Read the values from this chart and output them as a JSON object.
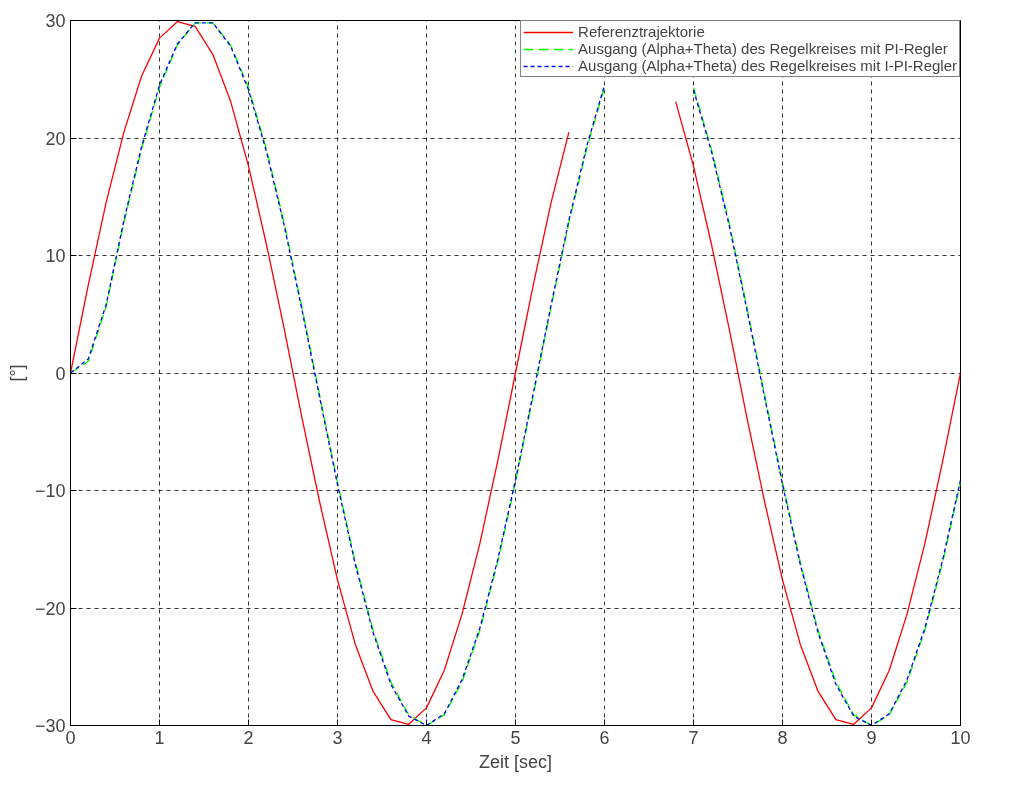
{
  "chart_data": {
    "type": "line",
    "xlabel": "Zeit [sec]",
    "ylabel": "[°]",
    "x": [
      0,
      0.2,
      0.4,
      0.6,
      0.8,
      1,
      1.2,
      1.4,
      1.6,
      1.8,
      2,
      2.2,
      2.4,
      2.6,
      2.8,
      3,
      3.2,
      3.4,
      3.6,
      3.8,
      4,
      4.2,
      4.4,
      4.6,
      4.8,
      5,
      5.2,
      5.4,
      5.6,
      5.8,
      6,
      6.2,
      6.4,
      6.6,
      6.8,
      7,
      7.2,
      7.4,
      7.6,
      7.8,
      8,
      8.2,
      8.4,
      8.6,
      8.8,
      9,
      9.2,
      9.4,
      9.6,
      9.8,
      10
    ],
    "series": [
      {
        "name": "Referenztrajektorie",
        "color": "#ff0000",
        "line_style": "solid",
        "values": [
          0,
          7.5,
          14.5,
          20.5,
          25.3,
          28.5,
          29.9,
          29.5,
          27.1,
          23.1,
          17.6,
          11.0,
          3.8,
          -3.8,
          -11.0,
          -17.6,
          -23.1,
          -27.1,
          -29.5,
          -29.9,
          -28.5,
          -25.3,
          -20.5,
          -14.5,
          -7.5,
          0,
          7.5,
          14.5,
          20.5,
          null,
          null,
          null,
          null,
          null,
          23.1,
          17.6,
          11.0,
          3.8,
          -3.8,
          -11.0,
          -17.6,
          -23.1,
          -27.1,
          -29.5,
          -29.9,
          -28.5,
          -25.3,
          -20.5,
          -14.5,
          -7.5,
          0
        ]
      },
      {
        "name": "Ausgang (Alpha+Theta) des Regelkreises mit PI-Regler",
        "color": "#00ff00",
        "line_style": "dashed",
        "values": [
          0,
          1,
          5.6,
          12.8,
          19.1,
          24.3,
          27.9,
          29.8,
          29.8,
          27.9,
          24.3,
          19.1,
          12.8,
          5.6,
          -1.9,
          -9.3,
          -16.1,
          -21.9,
          -26.3,
          -29.1,
          -30,
          -29.1,
          -26.3,
          -21.9,
          -16.1,
          -9.3,
          -1.9,
          5.6,
          12.8,
          19.1,
          24.3,
          null,
          null,
          null,
          null,
          24.3,
          19.1,
          12.8,
          5.6,
          -1.9,
          -9.3,
          -16.1,
          -21.9,
          -26.3,
          -29.1,
          -30,
          -29.1,
          -26.3,
          -21.9,
          -16.1,
          -9.3
        ]
      },
      {
        "name": "Ausgang (Alpha+Theta) des Regelkreises mit I-PI-Regler",
        "color": "#0000ff",
        "line_style": "dotted",
        "values": [
          0,
          1.2,
          5.8,
          13.0,
          19.3,
          24.5,
          28.0,
          29.8,
          29.8,
          27.8,
          24.1,
          18.9,
          12.6,
          5.4,
          -2.1,
          -9.5,
          -16.3,
          -22.1,
          -26.5,
          -29.2,
          -30,
          -29.0,
          -26.1,
          -21.7,
          -15.9,
          -9.1,
          -1.7,
          5.8,
          13.0,
          19.3,
          24.5,
          null,
          null,
          null,
          null,
          24.1,
          18.9,
          12.6,
          5.4,
          -2.1,
          -9.5,
          -16.3,
          -22.1,
          -26.5,
          -29.2,
          -30,
          -29.0,
          -26.1,
          -21.7,
          -15.9,
          -9.1
        ]
      }
    ],
    "xlim": [
      0,
      10
    ],
    "ylim": [
      -30,
      30
    ],
    "xticks": [
      0,
      1,
      2,
      3,
      4,
      5,
      6,
      7,
      8,
      9,
      10
    ],
    "yticks": [
      -30,
      -20,
      -10,
      0,
      10,
      20,
      30
    ],
    "grid": true,
    "legend": "top right",
    "marker": "none"
  }
}
